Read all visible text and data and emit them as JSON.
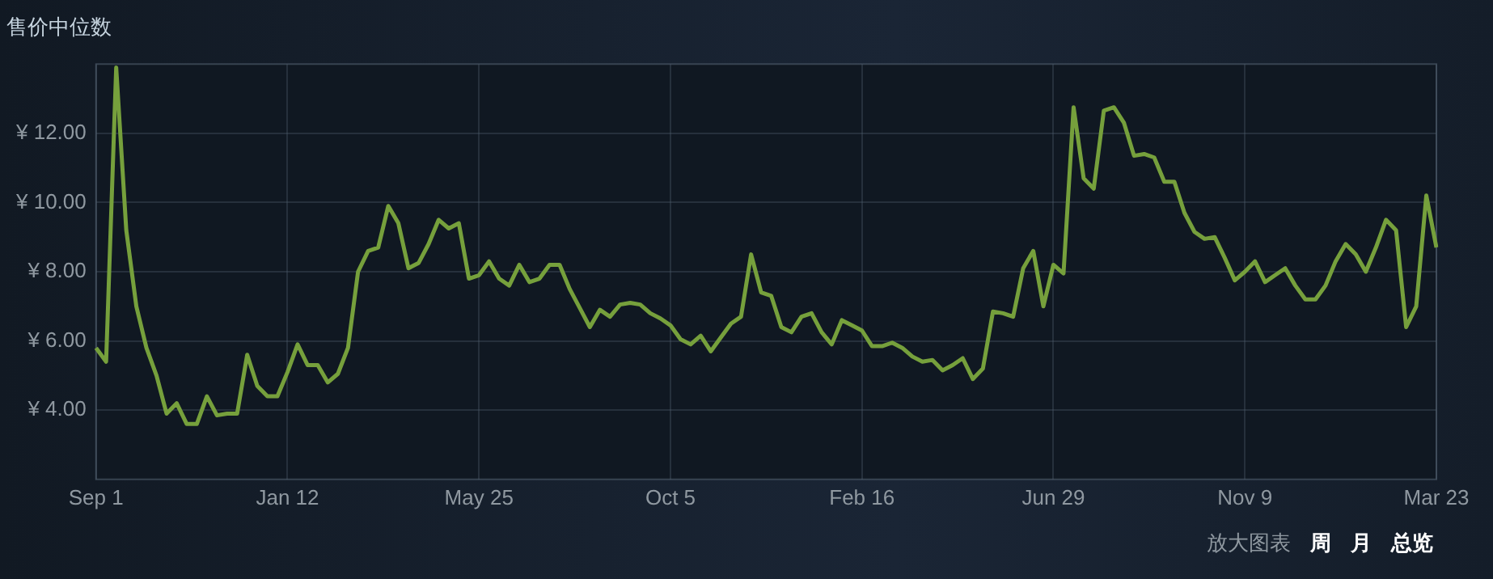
{
  "chart_data": {
    "type": "line",
    "title": "售价中位数",
    "color": "#76a03c",
    "line_style": "solid",
    "marker": "none",
    "grid": true,
    "legend": false,
    "categories": [
      "Sep 1",
      null,
      null,
      null,
      null,
      null,
      null,
      null,
      null,
      null,
      null,
      null,
      null,
      null,
      null,
      null,
      null,
      null,
      null,
      "Jan 12",
      null,
      null,
      null,
      null,
      null,
      null,
      null,
      null,
      null,
      null,
      null,
      null,
      null,
      null,
      null,
      null,
      null,
      null,
      "May 25",
      null,
      null,
      null,
      null,
      null,
      null,
      null,
      null,
      null,
      null,
      null,
      null,
      null,
      null,
      null,
      null,
      null,
      null,
      "Oct 5",
      null,
      null,
      null,
      null,
      null,
      null,
      null,
      null,
      null,
      null,
      null,
      null,
      null,
      null,
      null,
      null,
      null,
      null,
      "Feb 16",
      null,
      null,
      null,
      null,
      null,
      null,
      null,
      null,
      null,
      null,
      null,
      null,
      null,
      null,
      null,
      null,
      null,
      null,
      "Jun 29",
      null,
      null,
      null,
      null,
      null,
      null,
      null,
      null,
      null,
      null,
      null,
      null,
      null,
      null,
      null,
      null,
      null,
      null,
      "Nov 9",
      null,
      null,
      null,
      null,
      null,
      null,
      null,
      null,
      null,
      null,
      null,
      null,
      null,
      null,
      null,
      null,
      null,
      null,
      "Mar 23"
    ],
    "values": [
      5.8,
      5.4,
      13.9,
      9.2,
      7.0,
      5.8,
      5.0,
      3.9,
      4.2,
      3.6,
      3.6,
      4.4,
      3.85,
      3.9,
      3.9,
      5.6,
      4.7,
      4.4,
      4.4,
      5.1,
      5.9,
      5.3,
      5.3,
      4.8,
      5.05,
      5.8,
      8.0,
      8.6,
      8.7,
      9.9,
      9.4,
      8.1,
      8.25,
      8.8,
      9.5,
      9.25,
      9.4,
      7.8,
      7.9,
      8.3,
      7.8,
      7.6,
      8.2,
      7.7,
      7.8,
      8.2,
      8.2,
      7.5,
      6.95,
      6.4,
      6.9,
      6.7,
      7.05,
      7.1,
      7.05,
      6.8,
      6.65,
      6.45,
      6.05,
      5.9,
      6.15,
      5.7,
      6.1,
      6.5,
      6.7,
      8.5,
      7.4,
      7.3,
      6.4,
      6.25,
      6.7,
      6.8,
      6.25,
      5.9,
      6.6,
      6.45,
      6.3,
      5.85,
      5.85,
      5.95,
      5.8,
      5.55,
      5.4,
      5.45,
      5.15,
      5.3,
      5.5,
      4.9,
      5.2,
      6.85,
      6.8,
      6.7,
      8.1,
      8.6,
      7.0,
      8.2,
      7.95,
      12.75,
      10.7,
      10.4,
      12.65,
      12.75,
      12.3,
      11.35,
      11.4,
      11.3,
      10.6,
      10.6,
      9.7,
      9.15,
      8.95,
      9.0,
      8.4,
      7.75,
      8.0,
      8.3,
      7.7,
      7.9,
      8.1,
      7.6,
      7.2,
      7.2,
      7.6,
      8.3,
      8.8,
      8.5,
      8.0,
      8.7,
      9.5,
      9.2,
      6.4,
      7.0,
      10.2,
      8.7
    ],
    "ylim": [
      2,
      14
    ],
    "yticks": [
      {
        "value": 4,
        "label": "¥ 4.00"
      },
      {
        "value": 6,
        "label": "¥ 6.00"
      },
      {
        "value": 8,
        "label": "¥ 8.00"
      },
      {
        "value": 10,
        "label": "¥ 10.00"
      },
      {
        "value": 12,
        "label": "¥ 12.00"
      }
    ],
    "annotations": [
      "放大图表",
      "周",
      "月",
      "总览"
    ]
  }
}
